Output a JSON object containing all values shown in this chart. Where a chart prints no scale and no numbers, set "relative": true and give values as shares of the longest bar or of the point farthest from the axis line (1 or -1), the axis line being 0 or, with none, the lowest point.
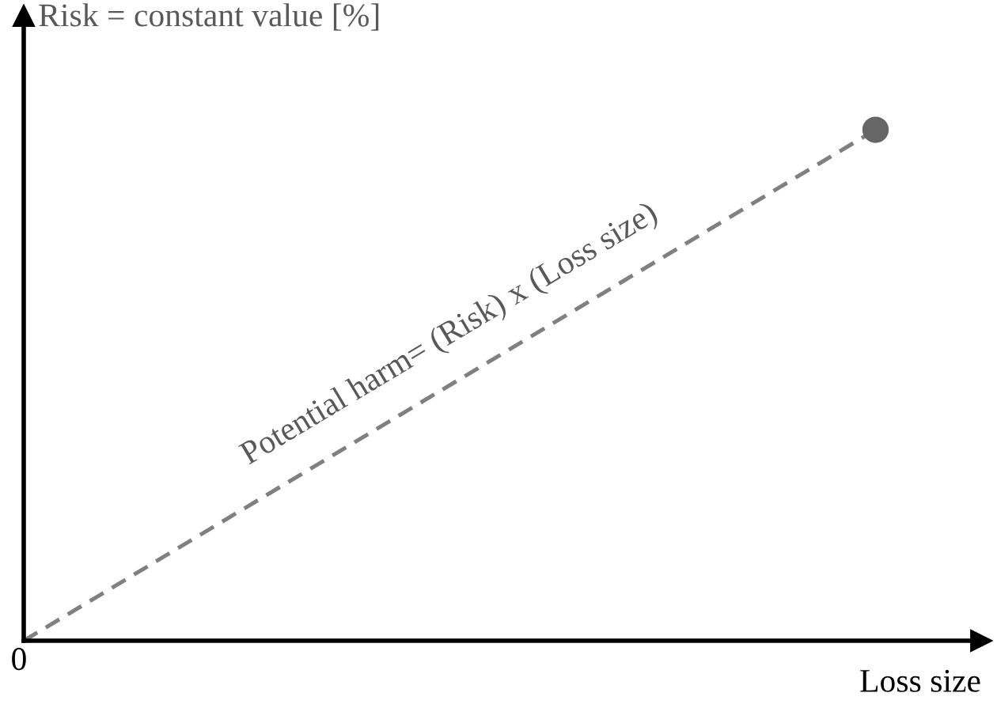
{
  "chart_data": {
    "type": "line",
    "relative": true,
    "ylabel": "Risk = constant value [%]",
    "xlabel": "Loss size",
    "categories": [
      null,
      null
    ],
    "series": [
      {
        "color": "#808080",
        "values": [
          0,
          1
        ],
        "line_style": "dashed",
        "marker": "circle"
      }
    ],
    "annotations": [
      "0",
      "Potential harm= (Risk) x (Loss size)"
    ],
    "legend": false
  }
}
